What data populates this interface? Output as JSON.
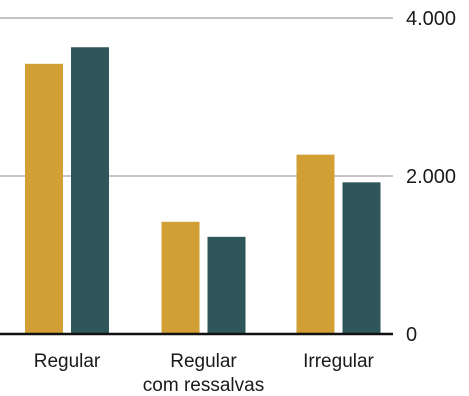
{
  "chart_data": {
    "type": "bar",
    "categories": [
      [
        "Regular"
      ],
      [
        "Regular",
        "com ressalvas"
      ],
      [
        "Irregular"
      ]
    ],
    "series": [
      {
        "color": "#d29f35",
        "values": [
          3420,
          1420,
          2270
        ]
      },
      {
        "color": "#2f5759",
        "values": [
          3630,
          1230,
          1920
        ]
      }
    ],
    "ylim": [
      0,
      4000
    ],
    "yticks": [
      {
        "value": 4000,
        "label": "4.000"
      },
      {
        "value": 2000,
        "label": "2.000"
      },
      {
        "value": 0,
        "label": "0"
      }
    ],
    "grid": true,
    "legend": "none"
  }
}
